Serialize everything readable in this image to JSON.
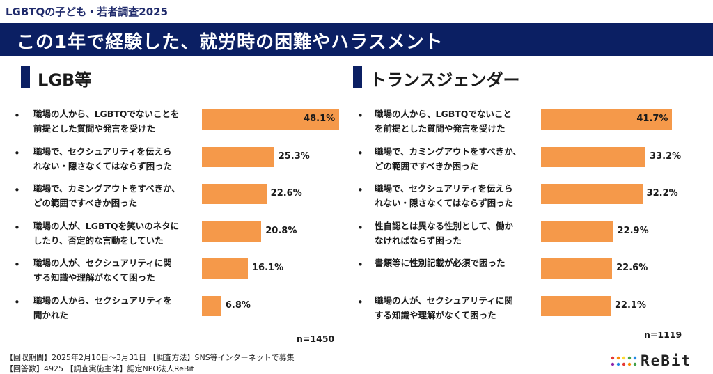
{
  "header": {
    "survey_label": "LGBTQの子ども・若者調査2025",
    "title": "この1年で経験した、就労時の困難やハラスメント"
  },
  "colors": {
    "banner": "#0b1f63",
    "bar": "#f5994a",
    "accent": "#0b1f63"
  },
  "left_panel": {
    "title": "LGB等",
    "n": "n=1450"
  },
  "right_panel": {
    "title": "トランスジェンダー",
    "n": "n=1119"
  },
  "chart_data": [
    {
      "type": "bar",
      "orientation": "horizontal",
      "title": "LGB等",
      "categories": [
        [
          "職場の人から、LGBTQでないことを",
          "前提とした質問や発言を受けた"
        ],
        [
          "職場で、セクシュアリティを伝えら",
          "れない・隠さなくてはならず困った"
        ],
        [
          "職場で、カミングアウトをすべきか、",
          "どの範囲ですべきか困った"
        ],
        [
          "職場の人が、LGBTQを笑いのネタに",
          "したり、否定的な言動をしていた"
        ],
        [
          "職場の人が、セクシュアリティに関",
          "する知識や理解がなくて困った"
        ],
        [
          "職場の人から、セクシュアリティを",
          "聞かれた"
        ]
      ],
      "values": [
        48.1,
        25.3,
        22.6,
        20.8,
        16.1,
        6.8
      ],
      "labels": [
        "48.1%",
        "25.3%",
        "22.6%",
        "20.8%",
        "16.1%",
        "6.8%"
      ],
      "n": "n=1450"
    },
    {
      "type": "bar",
      "orientation": "horizontal",
      "title": "トランスジェンダー",
      "categories": [
        [
          "職場の人から、LGBTQでないこと",
          "を前提とした質問や発言を受けた"
        ],
        [
          "職場で、カミングアウトをすべきか、",
          "どの範囲ですべきか困った"
        ],
        [
          "職場で、セクシュアリティを伝えら",
          "れない・隠さなくてはならず困った"
        ],
        [
          "性自認とは異なる性別として、働か",
          "なければならず困った"
        ],
        [
          "書類等に性別記載が必須で困った"
        ],
        [
          "職場の人が、セクシュアリティに関",
          "する知識や理解がなくて困った"
        ]
      ],
      "values": [
        41.7,
        33.2,
        32.2,
        22.9,
        22.6,
        22.1
      ],
      "labels": [
        "41.7%",
        "33.2%",
        "32.2%",
        "22.9%",
        "22.6%",
        "22.1%"
      ],
      "n": "n=1119"
    }
  ],
  "footer": {
    "line1": "【回収期間】2025年2月10日～3月31日 【調査方法】SNS等インターネットで募集",
    "line2": "【回答数】4925 【調査実施主体】認定NPO法人ReBit"
  },
  "logo": {
    "text": "ReBit"
  }
}
